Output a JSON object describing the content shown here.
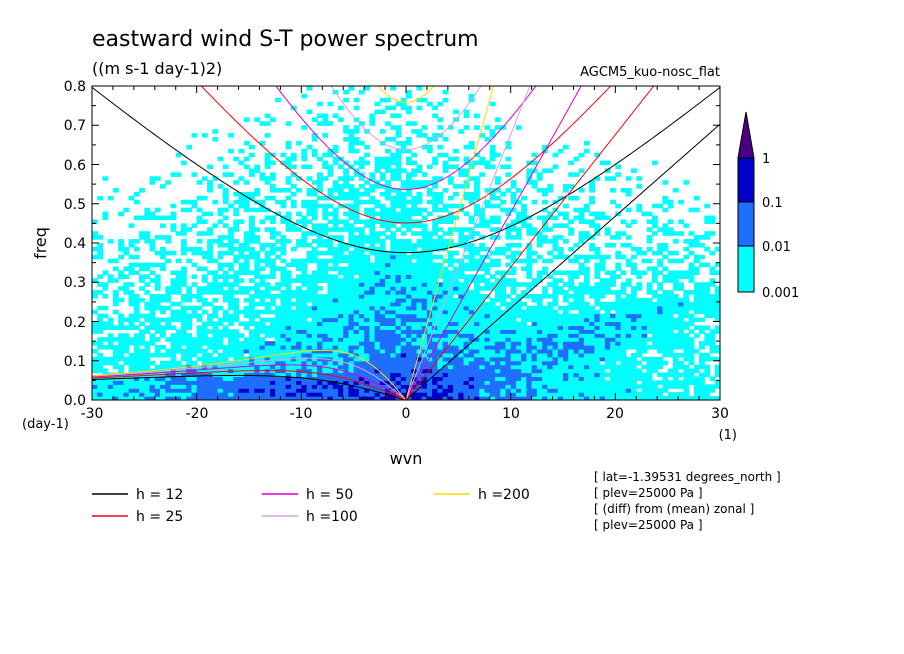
{
  "title": "eastward wind S-T power spectrum",
  "units": "((m s-1 day-1)2)",
  "model": "AGCM5_kuo-nosc_flat",
  "colorbar": {
    "levels": [
      "1",
      "0.1",
      "0.01",
      "0.001"
    ],
    "colors": [
      "#000080",
      "#0000cd",
      "#1e90ff",
      "#00ffff",
      "#4b0082"
    ]
  },
  "legend": [
    {
      "label": "h = 12",
      "color": "#000000"
    },
    {
      "label": "h = 25",
      "color": "#ff0000"
    },
    {
      "label": "h = 50",
      "color": "#e000c8"
    },
    {
      "label": "h =100",
      "color": "#dda0dd"
    },
    {
      "label": "h =200",
      "color": "#ffd700"
    }
  ],
  "info": [
    "[ lat=-1.39531 degrees_north ]",
    "[ plev=25000 Pa ]",
    "[ (diff) from (mean) zonal ]",
    "[ plev=25000 Pa ]"
  ],
  "chart_data": {
    "type": "heatmap",
    "title": "eastward wind S-T power spectrum",
    "subtitle": "((m s-1 day-1)2)",
    "xlabel": "wvn",
    "ylabel": "freq",
    "x_unit": "(1)",
    "y_unit": "(day-1)",
    "xlim": [
      -30,
      30
    ],
    "ylim": [
      0,
      0.8
    ],
    "xticks": [
      "-30",
      "-20",
      "-10",
      "0",
      "10",
      "20",
      "30"
    ],
    "yticks": [
      "0.0",
      "0.1",
      "0.2",
      "0.3",
      "0.4",
      "0.5",
      "0.6",
      "0.7",
      "0.8"
    ],
    "contour_levels": [
      0.001,
      0.01,
      0.1,
      1
    ],
    "overlay_equivalent_depths": [
      12,
      25,
      50,
      100,
      200
    ]
  }
}
